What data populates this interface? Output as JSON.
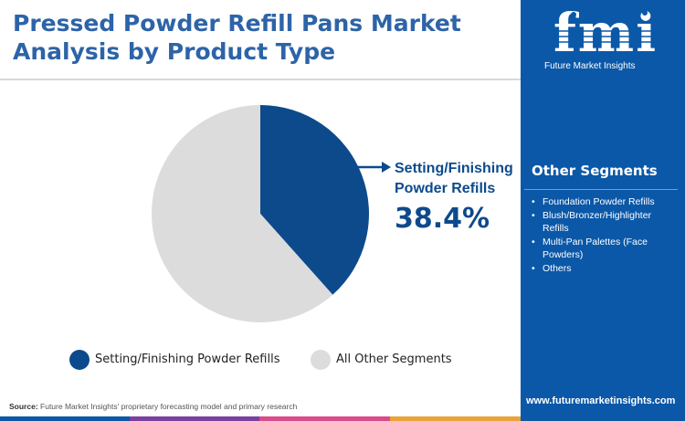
{
  "header": {
    "title_line1": "Pressed Powder Refill Pans Market",
    "title_line2": "Analysis by Product Type"
  },
  "brand": {
    "logo_text": "fmi",
    "tagline": "Future Market Insights",
    "website": "www.futuremarketinsights.com"
  },
  "other_segments": {
    "heading": "Other Segments",
    "items": [
      "Foundation Powder Refills",
      "Blush/Bronzer/Highlighter Refills",
      "Multi-Pan Palettes (Face Powders)",
      "Others"
    ]
  },
  "source": {
    "label": "Source:",
    "text": "Future Market Insights' proprietary forecasting model and primary research"
  },
  "colors": {
    "primary": "#0d4a8c",
    "secondary": "#dcdcdc",
    "sidebar": "#0b58a8",
    "title": "#2d64a8"
  },
  "chart_data": {
    "type": "pie",
    "title": "",
    "categories": [
      "Setting/Finishing Powder Refills",
      "All Other Segments"
    ],
    "values": [
      38.4,
      61.6
    ],
    "callout": {
      "label_line1": "Setting/Finishing",
      "label_line2": "Powder Refills",
      "value_text": "38.4%"
    },
    "legend": {
      "position": "bottom",
      "entries": [
        "Setting/Finishing Powder Refills",
        "All Other Segments"
      ]
    }
  }
}
